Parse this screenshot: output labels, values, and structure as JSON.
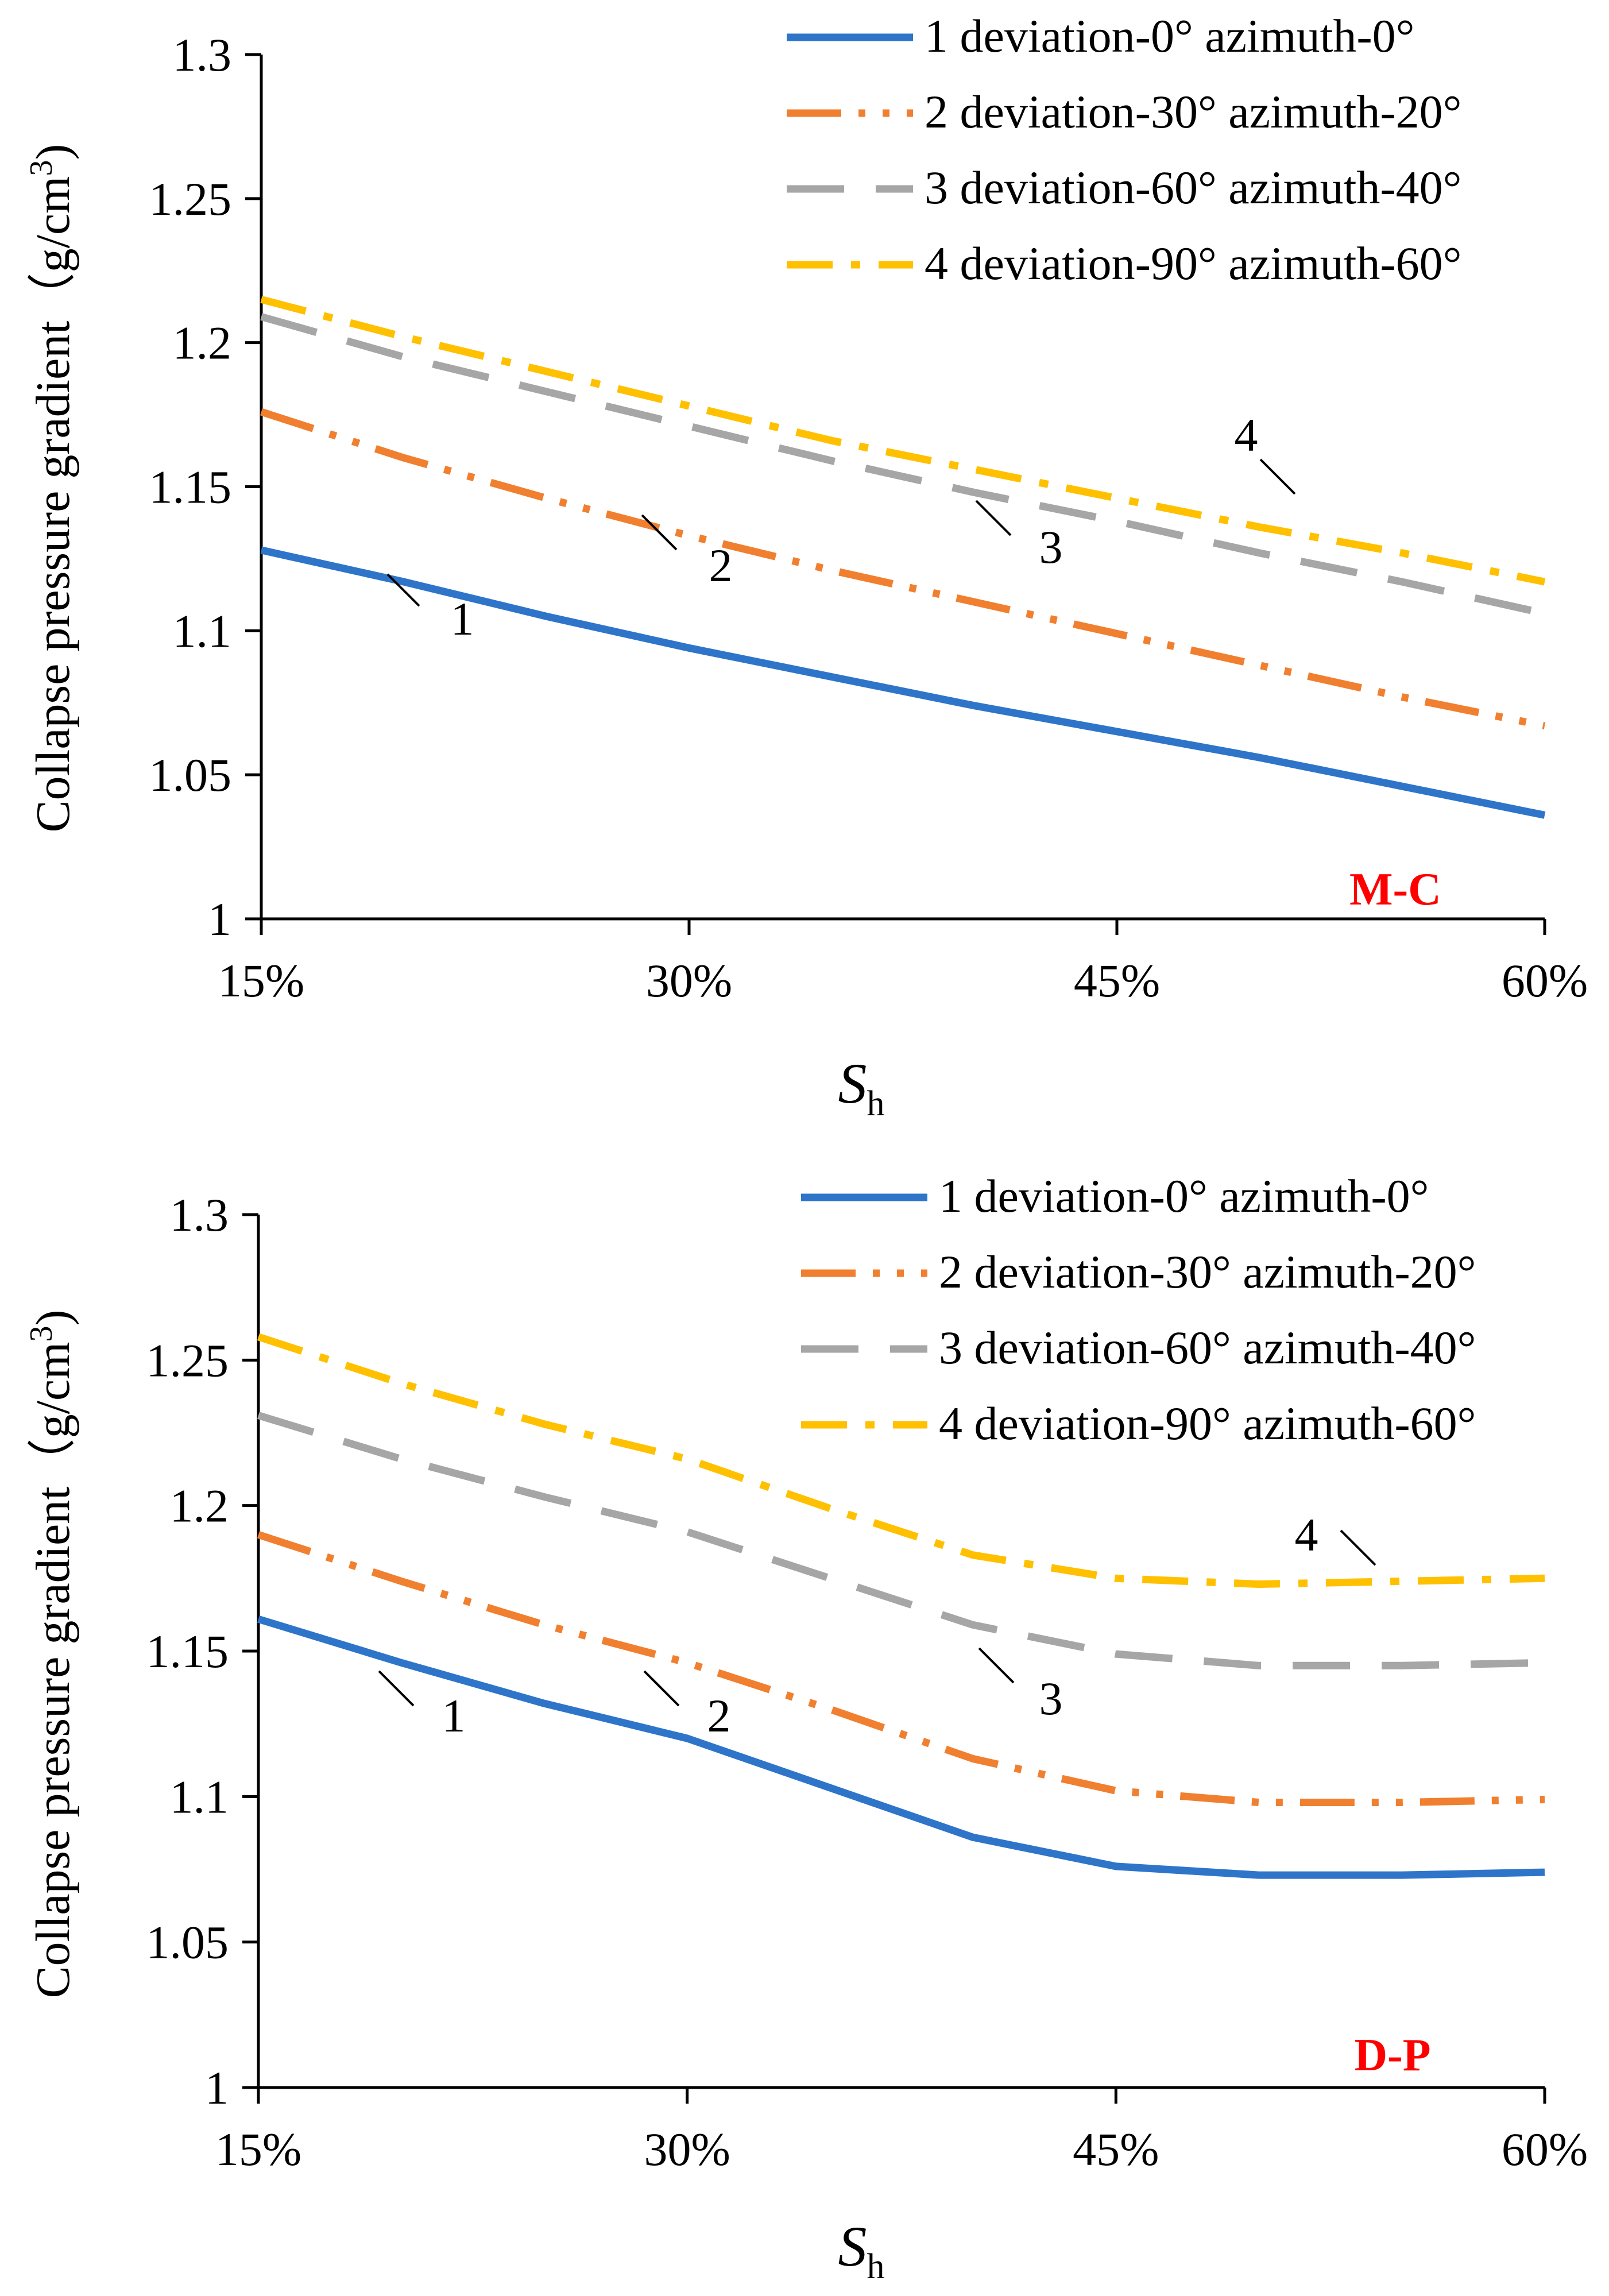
{
  "chart_data": [
    {
      "type": "line",
      "xlabel": "S",
      "xlabel_sub": "h",
      "ylabel": "Collapse pressure gradient（g/cm",
      "ylabel_sup": "3",
      "ylabel_close": ")",
      "x": [
        15,
        30,
        45,
        60
      ],
      "xtick_labels": [
        "15%",
        "30%",
        "45%",
        "60%"
      ],
      "xlim": [
        15,
        60
      ],
      "ylim": [
        1,
        1.3
      ],
      "ytick_labels": [
        "1",
        "1.05",
        "1.1",
        "1.15",
        "1.2",
        "1.25",
        "1.3"
      ],
      "grid": false,
      "legend_position": "top-right",
      "model_label": "M-C",
      "model_label_color": "#ff0000",
      "series": [
        {
          "name": "1 deviation-0° azimuth-0°",
          "tag": "1",
          "color": "#2e75c9",
          "style": "solid",
          "x": [
            15,
            20,
            25,
            30,
            35,
            40,
            45,
            50,
            55,
            60
          ],
          "values": [
            1.128,
            1.117,
            1.105,
            1.094,
            1.084,
            1.074,
            1.065,
            1.056,
            1.046,
            1.036
          ]
        },
        {
          "name": "2 deviation-30° azimuth-20°",
          "tag": "2",
          "color": "#f07f2f",
          "style": "dashdotdot",
          "x": [
            15,
            20,
            25,
            30,
            35,
            40,
            45,
            50,
            55,
            60
          ],
          "values": [
            1.176,
            1.16,
            1.146,
            1.133,
            1.121,
            1.11,
            1.099,
            1.088,
            1.077,
            1.067
          ]
        },
        {
          "name": "3 deviation-60° azimuth-40°",
          "tag": "3",
          "color": "#a6a6a6",
          "style": "dash",
          "x": [
            15,
            20,
            25,
            30,
            35,
            40,
            45,
            50,
            55,
            60
          ],
          "values": [
            1.209,
            1.195,
            1.183,
            1.171,
            1.159,
            1.148,
            1.138,
            1.127,
            1.117,
            1.106
          ]
        },
        {
          "name": "4 deviation-90° azimuth-60°",
          "tag": "4",
          "color": "#ffc000",
          "style": "dashdot",
          "x": [
            15,
            20,
            25,
            30,
            35,
            40,
            45,
            50,
            55,
            60
          ],
          "values": [
            1.215,
            1.202,
            1.19,
            1.178,
            1.166,
            1.156,
            1.146,
            1.136,
            1.127,
            1.117
          ]
        }
      ]
    },
    {
      "type": "line",
      "xlabel": "S",
      "xlabel_sub": "h",
      "ylabel": "Collapse pressure gradient（g/cm",
      "ylabel_sup": "3",
      "ylabel_close": ")",
      "x": [
        15,
        30,
        45,
        60
      ],
      "xtick_labels": [
        "15%",
        "30%",
        "45%",
        "60%"
      ],
      "xlim": [
        15,
        60
      ],
      "ylim": [
        1,
        1.3
      ],
      "ytick_labels": [
        "1",
        "1.05",
        "1.1",
        "1.15",
        "1.2",
        "1.25",
        "1.3"
      ],
      "grid": false,
      "legend_position": "top-right",
      "model_label": "D-P",
      "model_label_color": "#ff0000",
      "series": [
        {
          "name": "1 deviation-0° azimuth-0°",
          "tag": "1",
          "color": "#2e75c9",
          "style": "solid",
          "x": [
            15,
            20,
            25,
            30,
            35,
            40,
            45,
            50,
            55,
            60
          ],
          "values": [
            1.161,
            1.146,
            1.132,
            1.12,
            1.103,
            1.086,
            1.076,
            1.073,
            1.073,
            1.074
          ]
        },
        {
          "name": "2 deviation-30° azimuth-20°",
          "tag": "2",
          "color": "#f07f2f",
          "style": "dashdotdot",
          "x": [
            15,
            20,
            25,
            30,
            35,
            40,
            45,
            50,
            55,
            60
          ],
          "values": [
            1.19,
            1.174,
            1.159,
            1.146,
            1.13,
            1.113,
            1.102,
            1.098,
            1.098,
            1.099
          ]
        },
        {
          "name": "3 deviation-60° azimuth-40°",
          "tag": "3",
          "color": "#a6a6a6",
          "style": "dash",
          "x": [
            15,
            20,
            25,
            30,
            35,
            40,
            45,
            50,
            55,
            60
          ],
          "values": [
            1.231,
            1.216,
            1.203,
            1.191,
            1.175,
            1.159,
            1.149,
            1.145,
            1.145,
            1.146
          ]
        },
        {
          "name": "4 deviation-90° azimuth-60°",
          "tag": "4",
          "color": "#ffc000",
          "style": "dashdot",
          "x": [
            15,
            20,
            25,
            30,
            35,
            40,
            45,
            50,
            55,
            60
          ],
          "values": [
            1.258,
            1.242,
            1.228,
            1.216,
            1.199,
            1.183,
            1.175,
            1.173,
            1.174,
            1.175
          ]
        }
      ]
    }
  ]
}
